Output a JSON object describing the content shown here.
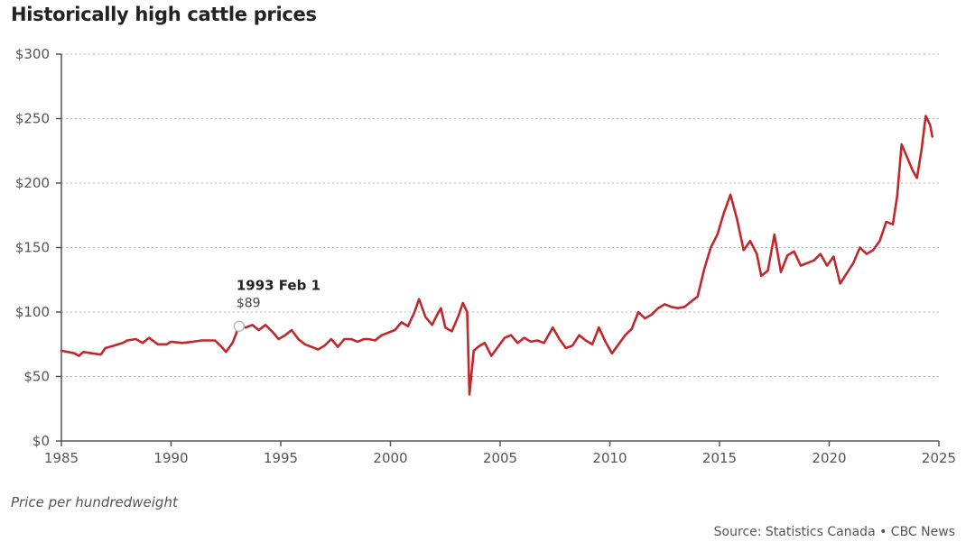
{
  "chart_data": {
    "type": "line",
    "title": "Historically high cattle prices",
    "xlabel": "",
    "ylabel": "",
    "note": "Price per hundredweight",
    "source": "Source: Statistics Canada • CBC News",
    "xlim": [
      1985,
      2025
    ],
    "ylim": [
      0,
      300
    ],
    "x_ticks": [
      1985,
      1990,
      1995,
      2000,
      2005,
      2010,
      2015,
      2020,
      2025
    ],
    "y_ticks": [
      0,
      50,
      100,
      150,
      200,
      250,
      300
    ],
    "y_tick_labels": [
      "$0",
      "$50",
      "$100",
      "$150",
      "$200",
      "$250",
      "$300"
    ],
    "grid": "horizontal dotted",
    "line_color": "#c0282d",
    "series": [
      {
        "points": [
          [
            1985.0,
            70
          ],
          [
            1985.3,
            69
          ],
          [
            1985.6,
            68
          ],
          [
            1985.8,
            66
          ],
          [
            1986.0,
            69
          ],
          [
            1986.4,
            68
          ],
          [
            1986.8,
            67
          ],
          [
            1987.0,
            72
          ],
          [
            1987.4,
            74
          ],
          [
            1987.8,
            76
          ],
          [
            1988.0,
            78
          ],
          [
            1988.4,
            79
          ],
          [
            1988.7,
            76
          ],
          [
            1989.0,
            80
          ],
          [
            1989.4,
            75
          ],
          [
            1989.8,
            75
          ],
          [
            1990.0,
            77
          ],
          [
            1990.5,
            76
          ],
          [
            1991.0,
            77
          ],
          [
            1991.4,
            78
          ],
          [
            1991.7,
            78
          ],
          [
            1992.0,
            78
          ],
          [
            1992.3,
            73
          ],
          [
            1992.5,
            69
          ],
          [
            1992.8,
            76
          ],
          [
            1993.1,
            89
          ],
          [
            1993.4,
            88
          ],
          [
            1993.7,
            90
          ],
          [
            1994.0,
            86
          ],
          [
            1994.3,
            90
          ],
          [
            1994.6,
            85
          ],
          [
            1994.9,
            79
          ],
          [
            1995.2,
            82
          ],
          [
            1995.5,
            86
          ],
          [
            1995.8,
            79
          ],
          [
            1996.1,
            75
          ],
          [
            1996.4,
            73
          ],
          [
            1996.7,
            71
          ],
          [
            1997.0,
            74
          ],
          [
            1997.3,
            79
          ],
          [
            1997.6,
            73
          ],
          [
            1997.9,
            79
          ],
          [
            1998.2,
            79
          ],
          [
            1998.5,
            77
          ],
          [
            1998.8,
            79
          ],
          [
            1999.0,
            79
          ],
          [
            1999.3,
            78
          ],
          [
            1999.6,
            82
          ],
          [
            1999.9,
            84
          ],
          [
            2000.2,
            86
          ],
          [
            2000.5,
            92
          ],
          [
            2000.8,
            89
          ],
          [
            2001.1,
            100
          ],
          [
            2001.3,
            110
          ],
          [
            2001.6,
            96
          ],
          [
            2001.9,
            90
          ],
          [
            2002.1,
            97
          ],
          [
            2002.3,
            103
          ],
          [
            2002.5,
            88
          ],
          [
            2002.8,
            85
          ],
          [
            2003.1,
            97
          ],
          [
            2003.3,
            107
          ],
          [
            2003.5,
            100
          ],
          [
            2003.6,
            36
          ],
          [
            2003.8,
            70
          ],
          [
            2004.0,
            73
          ],
          [
            2004.3,
            76
          ],
          [
            2004.6,
            66
          ],
          [
            2004.9,
            73
          ],
          [
            2005.2,
            80
          ],
          [
            2005.5,
            82
          ],
          [
            2005.8,
            76
          ],
          [
            2006.1,
            80
          ],
          [
            2006.4,
            77
          ],
          [
            2006.7,
            78
          ],
          [
            2007.0,
            76
          ],
          [
            2007.4,
            88
          ],
          [
            2007.7,
            79
          ],
          [
            2008.0,
            72
          ],
          [
            2008.3,
            74
          ],
          [
            2008.6,
            82
          ],
          [
            2008.9,
            78
          ],
          [
            2009.2,
            75
          ],
          [
            2009.5,
            88
          ],
          [
            2009.8,
            77
          ],
          [
            2010.1,
            68
          ],
          [
            2010.4,
            75
          ],
          [
            2010.7,
            82
          ],
          [
            2011.0,
            87
          ],
          [
            2011.3,
            100
          ],
          [
            2011.6,
            95
          ],
          [
            2011.9,
            98
          ],
          [
            2012.2,
            103
          ],
          [
            2012.5,
            106
          ],
          [
            2012.8,
            104
          ],
          [
            2013.1,
            103
          ],
          [
            2013.4,
            104
          ],
          [
            2013.7,
            108
          ],
          [
            2014.0,
            112
          ],
          [
            2014.3,
            133
          ],
          [
            2014.6,
            150
          ],
          [
            2014.9,
            160
          ],
          [
            2015.2,
            177
          ],
          [
            2015.5,
            191
          ],
          [
            2015.8,
            172
          ],
          [
            2016.1,
            148
          ],
          [
            2016.4,
            155
          ],
          [
            2016.7,
            145
          ],
          [
            2016.9,
            128
          ],
          [
            2017.2,
            132
          ],
          [
            2017.5,
            160
          ],
          [
            2017.8,
            131
          ],
          [
            2018.1,
            144
          ],
          [
            2018.4,
            147
          ],
          [
            2018.7,
            136
          ],
          [
            2019.0,
            138
          ],
          [
            2019.3,
            140
          ],
          [
            2019.6,
            145
          ],
          [
            2019.9,
            136
          ],
          [
            2020.2,
            143
          ],
          [
            2020.5,
            122
          ],
          [
            2020.8,
            130
          ],
          [
            2021.1,
            138
          ],
          [
            2021.4,
            150
          ],
          [
            2021.7,
            145
          ],
          [
            2022.0,
            148
          ],
          [
            2022.3,
            155
          ],
          [
            2022.6,
            170
          ],
          [
            2022.9,
            168
          ],
          [
            2023.1,
            190
          ],
          [
            2023.3,
            230
          ],
          [
            2023.5,
            222
          ],
          [
            2023.8,
            210
          ],
          [
            2024.0,
            204
          ],
          [
            2024.2,
            225
          ],
          [
            2024.4,
            252
          ],
          [
            2024.6,
            245
          ],
          [
            2024.7,
            236
          ]
        ]
      }
    ],
    "annotation": {
      "x": 1993.1,
      "y": 89,
      "label": "1993 Feb 1",
      "value_label": "$89"
    }
  }
}
